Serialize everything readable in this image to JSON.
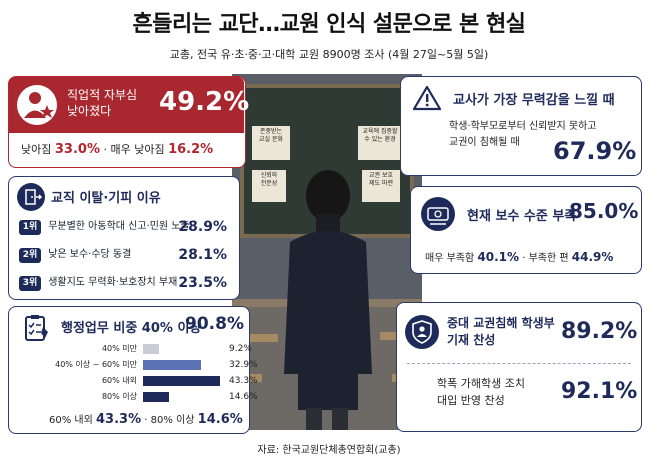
{
  "header": {
    "title": "흔들리는 교단…교원 인식 설문으로 본 현실",
    "subtitle": "교총, 전국 유·초·중·고·대학 교원 8900명 조사 (4월 27일~5월 5일)"
  },
  "card1": {
    "label": "직업적 자부심\n낮아졌다",
    "value": "49.2%",
    "detail_a_label": "낮아짐",
    "detail_a_value": "33.0%",
    "sep": "·",
    "detail_b_label": "매우 낮아짐",
    "detail_b_value": "16.2%"
  },
  "card2": {
    "title": "교직 이탈·기피 이유",
    "items": [
      {
        "rank": "1위",
        "label": "무분별한 아동학대 신고·민원 노출",
        "value": "28.9%"
      },
      {
        "rank": "2위",
        "label": "낮은 보수·수당 동결",
        "value": "28.1%"
      },
      {
        "rank": "3위",
        "label": "생활지도 무력화·보호장치 부재",
        "value": "23.5%"
      }
    ]
  },
  "card3": {
    "title": "행정업무 비중 40% 이상",
    "value": "90.8%",
    "bars": [
      {
        "label": "40% 미만",
        "value": "9.2%",
        "num": 9.2,
        "color": "#c9ccd4"
      },
      {
        "label": "40% 이상 ~ 60% 미만",
        "value": "32.9%",
        "num": 32.9,
        "color": "#5b72b5"
      },
      {
        "label": "60% 내외",
        "value": "43.3%",
        "num": 43.3,
        "color": "#1e2a5a"
      },
      {
        "label": "80% 이상",
        "value": "14.6%",
        "num": 14.6,
        "color": "#1e2a5a"
      }
    ],
    "footer_a_label": "60% 내외",
    "footer_a_value": "43.3%",
    "sep": "·",
    "footer_b_label": "80% 이상",
    "footer_b_value": "14.6%"
  },
  "card4": {
    "title": "교사가 가장 무력감을 느낄 때",
    "desc": "학생·학부모로부터 신뢰받지 못하고\n교권이 침해될 때",
    "value": "67.9%"
  },
  "card5": {
    "title": "현재 보수 수준 부족",
    "value": "85.0%",
    "detail_a_label": "매우 부족함",
    "detail_a_value": "40.1%",
    "sep": "·",
    "detail_b_label": "부족한 편",
    "detail_b_value": "44.9%"
  },
  "card6": {
    "title": "중대 교권침해 학생부\n기재 찬성",
    "value": "89.2%",
    "sub_title": "학폭 가해학생 조치\n대입 반영 찬성",
    "sub_value": "92.1%"
  },
  "photo": {
    "notes": [
      "존중받는\n교실 문화",
      "교육에 집중할\n수 있는 환경",
      "신뢰와\n전문성",
      "교권 보호\n제도 마련"
    ]
  },
  "source": "자료: 한국교원단체총연합회(교총)"
}
